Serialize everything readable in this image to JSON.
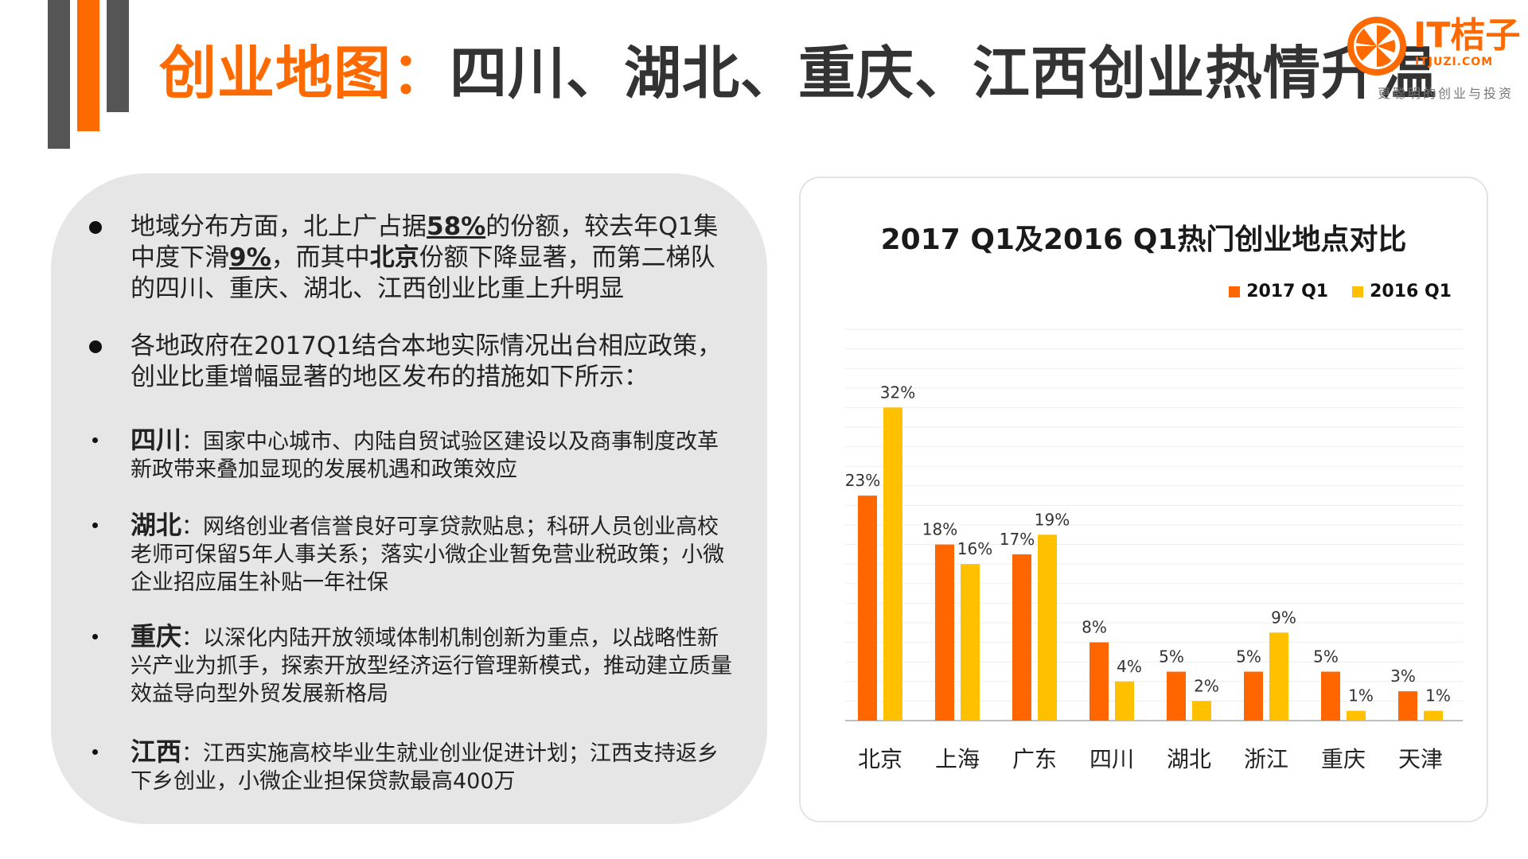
{
  "header": {
    "title_accent": "创业地图：",
    "title_rest": "四川、湖北、重庆、江西创业热情升温"
  },
  "logo": {
    "name": "IT桔子",
    "domain": "ITJUZI.COM",
    "slogan": "更聪明的创业与投资"
  },
  "bullets": [
    {
      "parts": [
        "地域分布方面，北上广占据",
        "58%",
        "的份额，较去年Q1集中度下滑",
        "9%",
        "，而其中",
        "北京",
        "份额下降显著，而第二梯队的四川、重庆、湖北、江西创业比重上升明显"
      ]
    },
    {
      "text": "各地政府在2017Q1结合本地实际情况出台相应政策，创业比重增幅显著的地区发布的措施如下所示："
    }
  ],
  "policies": [
    {
      "region": "四川",
      "text": "：国家中心城市、内陆自贸试验区建设以及商事制度改革新政带来叠加显现的发展机遇和政策效应"
    },
    {
      "region": "湖北",
      "text": "：网络创业者信誉良好可享贷款贴息；科研人员创业高校老师可保留5年人事关系；落实小微企业暂免营业税政策；小微企业招应届生补贴一年社保"
    },
    {
      "region": "重庆",
      "text": "：以深化内陆开放领域体制机制创新为重点，以战略性新兴产业为抓手，探索开放型经济运行管理新模式，推动建立质量效益导向型外贸发展新格局"
    },
    {
      "region": "江西",
      "text": "：江西实施高校毕业生就业创业促进计划；江西支持返乡下乡创业，小微企业担保贷款最高400万"
    }
  ],
  "chart_data": {
    "type": "bar",
    "title": "2017 Q1及2016 Q1热门创业地点对比",
    "categories": [
      "北京",
      "上海",
      "广东",
      "四川",
      "湖北",
      "浙江",
      "重庆",
      "天津"
    ],
    "series": [
      {
        "name": "2017 Q1",
        "color": "#ff6600",
        "values": [
          23,
          18,
          17,
          8,
          5,
          5,
          5,
          3
        ],
        "labels": [
          "23%",
          "18%",
          "17%",
          "8%",
          "5%",
          "5%",
          "5%",
          "3%"
        ]
      },
      {
        "name": "2016 Q1",
        "color": "#ffc000",
        "values": [
          32,
          16,
          19,
          4,
          2,
          9,
          1,
          1
        ],
        "labels": [
          "32%",
          "16%",
          "19%",
          "4%",
          "2%",
          "9%",
          "1%",
          "1%"
        ]
      }
    ],
    "ylim": [
      0,
      40
    ],
    "grid": true,
    "legend": "top-right",
    "xlabel": "",
    "ylabel": ""
  }
}
